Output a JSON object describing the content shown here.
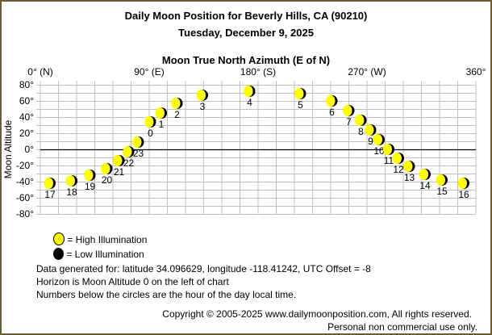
{
  "header": {
    "title": "Daily Moon Position for Beverly Hills, CA (90210)",
    "subtitle": "Tuesday, December 9, 2025"
  },
  "chart_data": {
    "type": "scatter",
    "title": "Moon True North Azimuth (E of N)",
    "xlabel": "Moon True North Azimuth (E of N)",
    "ylabel": "Moon Altitude",
    "xlim": [
      0,
      360
    ],
    "ylim": [
      -80,
      80
    ],
    "grid": true,
    "x_ticks": [
      {
        "value": 0,
        "label": "0° (N)"
      },
      {
        "value": 90,
        "label": "90° (E)"
      },
      {
        "value": 180,
        "label": "180° (S)"
      },
      {
        "value": 270,
        "label": "270° (W)"
      },
      {
        "value": 360,
        "label": "360°"
      }
    ],
    "y_ticks": [
      {
        "value": 80,
        "label": "80°"
      },
      {
        "value": 60,
        "label": "60°"
      },
      {
        "value": 40,
        "label": "40°"
      },
      {
        "value": 20,
        "label": "20°"
      },
      {
        "value": 0,
        "label": "0°"
      },
      {
        "value": -20,
        "label": "-20°"
      },
      {
        "value": -40,
        "label": "-40°"
      },
      {
        "value": -60,
        "label": "-60°"
      },
      {
        "value": -80,
        "label": "-80°"
      }
    ],
    "points": [
      {
        "hour": "0",
        "azimuth": 91,
        "altitude": 34
      },
      {
        "hour": "1",
        "azimuth": 100,
        "altitude": 45
      },
      {
        "hour": "2",
        "azimuth": 113,
        "altitude": 57
      },
      {
        "hour": "3",
        "azimuth": 134,
        "altitude": 67
      },
      {
        "hour": "4",
        "azimuth": 173,
        "altitude": 72
      },
      {
        "hour": "5",
        "azimuth": 215,
        "altitude": 69
      },
      {
        "hour": "6",
        "azimuth": 241,
        "altitude": 60
      },
      {
        "hour": "7",
        "azimuth": 255,
        "altitude": 48
      },
      {
        "hour": "8",
        "azimuth": 265,
        "altitude": 36
      },
      {
        "hour": "9",
        "azimuth": 273,
        "altitude": 24
      },
      {
        "hour": "10",
        "azimuth": 280,
        "altitude": 12
      },
      {
        "hour": "11",
        "azimuth": 288,
        "altitude": 0
      },
      {
        "hour": "12",
        "azimuth": 296,
        "altitude": -11
      },
      {
        "hour": "13",
        "azimuth": 305,
        "altitude": -21
      },
      {
        "hour": "14",
        "azimuth": 318,
        "altitude": -31
      },
      {
        "hour": "15",
        "azimuth": 332,
        "altitude": -38
      },
      {
        "hour": "16",
        "azimuth": 350,
        "altitude": -42
      },
      {
        "hour": "17",
        "azimuth": 8,
        "altitude": -42
      },
      {
        "hour": "18",
        "azimuth": 26,
        "altitude": -39
      },
      {
        "hour": "19",
        "azimuth": 41,
        "altitude": -32
      },
      {
        "hour": "20",
        "azimuth": 55,
        "altitude": -24
      },
      {
        "hour": "21",
        "azimuth": 65,
        "altitude": -14
      },
      {
        "hour": "22",
        "azimuth": 73,
        "altitude": -3
      },
      {
        "hour": "23",
        "azimuth": 81,
        "altitude": 9
      }
    ],
    "colors": {
      "high": "#ffff00",
      "low": "#000000",
      "grid": "#c0c0c0",
      "horizon": "#000000"
    }
  },
  "legend": {
    "high": "= High Illumination",
    "low": "= Low Illumination"
  },
  "notes": [
    "Data generated for: latitude 34.096629, longitude -118.41242, UTC Offset = -8",
    "Horizon is Moon Altitude 0 on the left of chart",
    "Numbers below the circles are the hour of the day local time."
  ],
  "footer": {
    "copyright": "Copyright © 2005-2025 www.dailymoonposition.com, All rights reserved.",
    "usage": "Personal non commercial use only."
  }
}
